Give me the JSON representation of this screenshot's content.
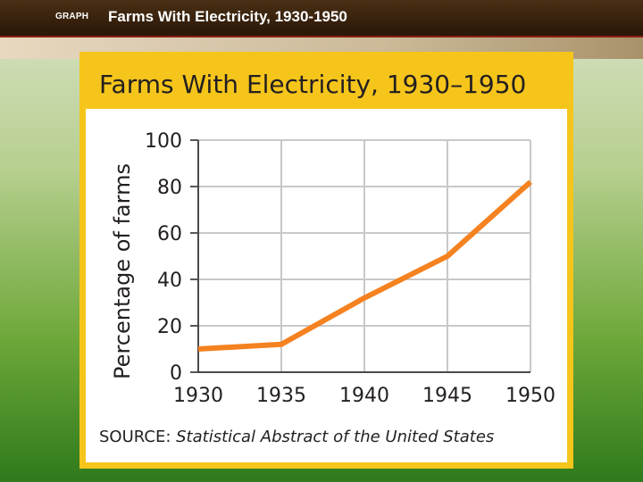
{
  "slide": {
    "tag": "GRAPH",
    "title": "Farms With Electricity, 1930-1950"
  },
  "source": {
    "prefix": "SOURCE:",
    "text": "Statistical Abstract of the United States"
  },
  "colors": {
    "line": "#f58220",
    "card": "#f6c51b",
    "grid": "#c8c8c8",
    "header": "#3b230d"
  },
  "chart_data": {
    "type": "line",
    "title": "Farms With Electricity, 1930–1950",
    "xlabel": "",
    "ylabel": "Percentage of farms",
    "x": [
      1930,
      1935,
      1940,
      1945,
      1950
    ],
    "xlim": [
      1930,
      1950
    ],
    "ylim": [
      0,
      100
    ],
    "yticks": [
      0,
      20,
      40,
      60,
      80,
      100
    ],
    "xtick_labels": [
      "1930",
      "1935",
      "1940",
      "1945",
      "1950"
    ],
    "ytick_labels": [
      "0",
      "20",
      "40",
      "60",
      "80",
      "100"
    ],
    "grid": true,
    "series": [
      {
        "values": [
          10,
          12,
          32,
          50,
          82
        ]
      }
    ]
  }
}
